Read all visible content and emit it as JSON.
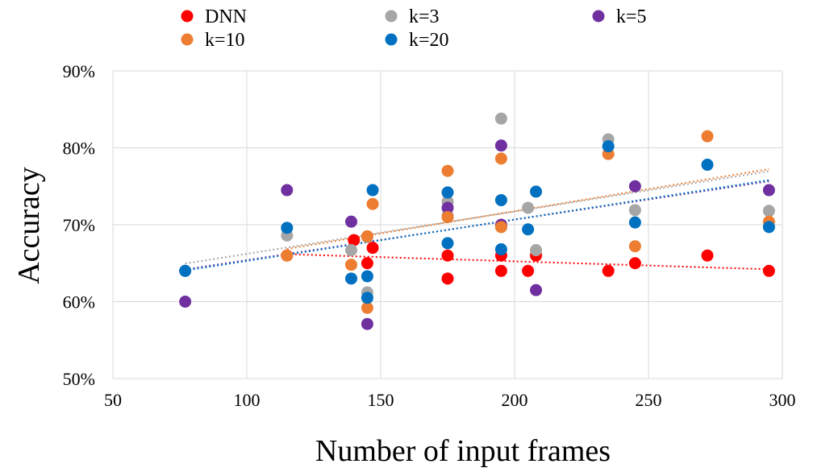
{
  "chart_data": {
    "type": "scatter",
    "xlabel": "Number of input frames",
    "ylabel": "Accuracy",
    "xlim": [
      50,
      300
    ],
    "ylim": [
      0.5,
      0.9
    ],
    "x_ticks": [
      "50",
      "100",
      "150",
      "200",
      "250",
      "300"
    ],
    "y_ticks": [
      "50%",
      "60%",
      "70%",
      "80%",
      "90%"
    ],
    "grid": true,
    "legend_position": "top",
    "trendlines": "linear, dotted",
    "series": [
      {
        "name": "DNN",
        "color": "#ff0000",
        "points": [
          [
            115,
            0.66
          ],
          [
            140,
            0.68
          ],
          [
            145,
            0.65
          ],
          [
            147,
            0.67
          ],
          [
            175,
            0.66
          ],
          [
            175,
            0.63
          ],
          [
            195,
            0.66
          ],
          [
            195,
            0.64
          ],
          [
            205,
            0.64
          ],
          [
            208,
            0.66
          ],
          [
            235,
            0.64
          ],
          [
            245,
            0.65
          ],
          [
            272,
            0.66
          ],
          [
            295,
            0.64
          ]
        ]
      },
      {
        "name": "k=3",
        "color": "#a6a6a6",
        "points": [
          [
            77,
            0.64
          ],
          [
            115,
            0.686
          ],
          [
            139,
            0.667
          ],
          [
            145,
            0.612
          ],
          [
            145,
            0.684
          ],
          [
            175,
            0.73
          ],
          [
            175,
            0.712
          ],
          [
            195,
            0.838
          ],
          [
            195,
            0.697
          ],
          [
            205,
            0.722
          ],
          [
            208,
            0.667
          ],
          [
            235,
            0.811
          ],
          [
            245,
            0.719
          ],
          [
            295,
            0.718
          ]
        ]
      },
      {
        "name": "k=5",
        "color": "#7030a0",
        "points": [
          [
            77,
            0.6
          ],
          [
            115,
            0.745
          ],
          [
            139,
            0.704
          ],
          [
            145,
            0.571
          ],
          [
            175,
            0.722
          ],
          [
            195,
            0.803
          ],
          [
            195,
            0.7
          ],
          [
            208,
            0.615
          ],
          [
            245,
            0.75
          ],
          [
            295,
            0.745
          ]
        ]
      },
      {
        "name": "k=10",
        "color": "#ed7d31",
        "points": [
          [
            115,
            0.66
          ],
          [
            139,
            0.648
          ],
          [
            145,
            0.592
          ],
          [
            145,
            0.685
          ],
          [
            147,
            0.727
          ],
          [
            175,
            0.77
          ],
          [
            175,
            0.71
          ],
          [
            195,
            0.786
          ],
          [
            195,
            0.697
          ],
          [
            235,
            0.792
          ],
          [
            245,
            0.672
          ],
          [
            272,
            0.815
          ],
          [
            295,
            0.704
          ]
        ]
      },
      {
        "name": "k=20",
        "color": "#0070c0",
        "points": [
          [
            77,
            0.64
          ],
          [
            115,
            0.696
          ],
          [
            139,
            0.63
          ],
          [
            145,
            0.633
          ],
          [
            145,
            0.605
          ],
          [
            147,
            0.745
          ],
          [
            175,
            0.742
          ],
          [
            175,
            0.676
          ],
          [
            195,
            0.732
          ],
          [
            195,
            0.668
          ],
          [
            205,
            0.694
          ],
          [
            208,
            0.743
          ],
          [
            235,
            0.802
          ],
          [
            245,
            0.703
          ],
          [
            272,
            0.778
          ],
          [
            295,
            0.697
          ]
        ]
      }
    ]
  }
}
